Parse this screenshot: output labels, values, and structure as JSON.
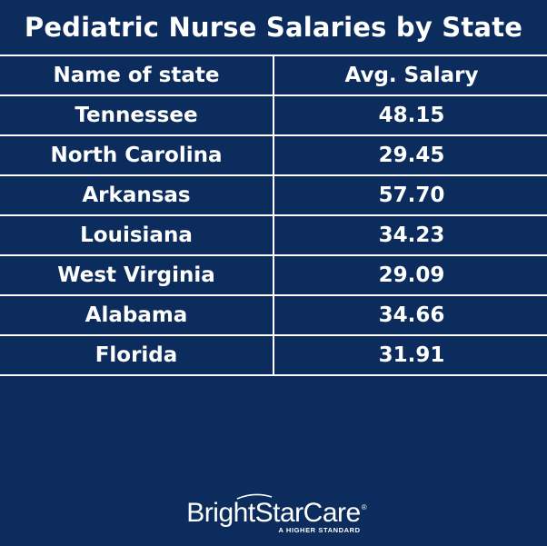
{
  "chart_data": {
    "type": "table",
    "title": "Pediatric Nurse Salaries by State",
    "columns": [
      "Name of state",
      "Avg. Salary"
    ],
    "rows": [
      [
        "Tennessee",
        "48.15"
      ],
      [
        "North Carolina",
        "29.45"
      ],
      [
        "Arkansas",
        "57.70"
      ],
      [
        "Louisiana",
        "34.23"
      ],
      [
        "West Virginia",
        "29.09"
      ],
      [
        "Alabama",
        "34.66"
      ],
      [
        "Florida",
        "31.91"
      ]
    ]
  },
  "logo": {
    "name": "BrightStarCare",
    "trademark": "®",
    "tagline": "A HIGHER STANDARD"
  },
  "colors": {
    "background": "#0c2c5e",
    "text": "#ffffff",
    "rule": "#ffffff"
  }
}
